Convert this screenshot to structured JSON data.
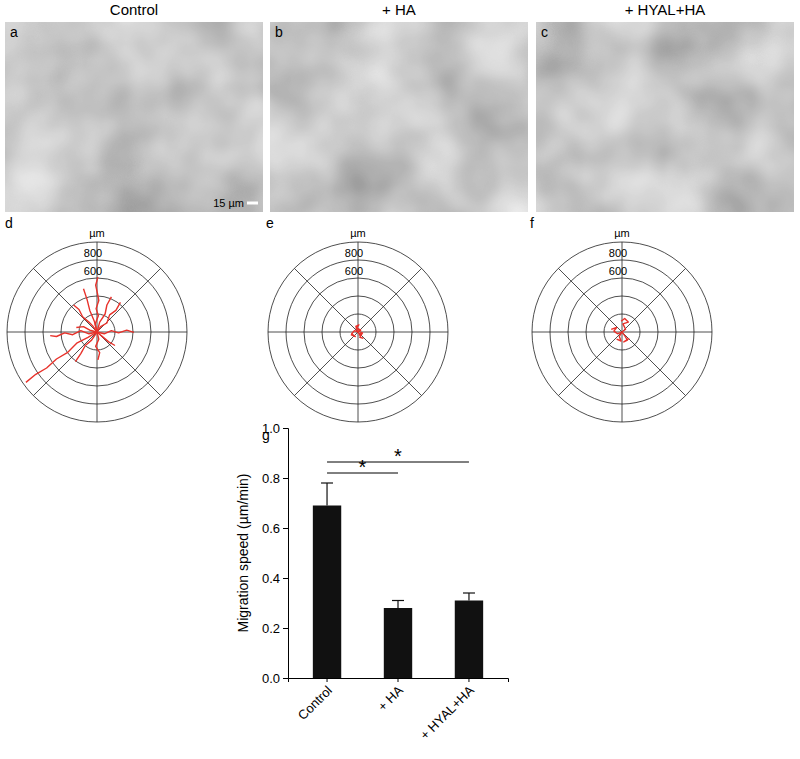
{
  "panels": {
    "titles": [
      "Control",
      "+ HA",
      "+ HYAL+HA"
    ],
    "letters": [
      "a",
      "b",
      "c"
    ],
    "scale_bar": "15 µm"
  },
  "chart_data": [
    {
      "type": "polar_track",
      "letter": "d",
      "unit": "µm",
      "rlim": [
        0,
        1000
      ],
      "rticks": [
        600,
        800
      ],
      "rgrid": [
        200,
        400,
        1000
      ],
      "color": "#e8322b",
      "tracks": [
        {
          "x": [
            0,
            -20,
            15,
            -10,
            20,
            5,
            -15,
            10
          ],
          "y": [
            0,
            90,
            180,
            260,
            350,
            430,
            520,
            610
          ]
        },
        {
          "x": [
            0,
            40,
            110,
            140,
            210,
            260
          ],
          "y": [
            0,
            60,
            100,
            190,
            240,
            330
          ]
        },
        {
          "x": [
            0,
            -50,
            -90,
            -160,
            -200,
            -260
          ],
          "y": [
            0,
            70,
            110,
            170,
            250,
            300
          ]
        },
        {
          "x": [
            0,
            80,
            160,
            240,
            330,
            410
          ],
          "y": [
            0,
            -20,
            15,
            -10,
            20,
            -5
          ]
        },
        {
          "x": [
            0,
            -100,
            -220,
            -330,
            -450,
            -560,
            -680,
            -790
          ],
          "y": [
            0,
            -60,
            -120,
            -230,
            -300,
            -400,
            -470,
            -560
          ]
        },
        {
          "x": [
            0,
            -90,
            -180,
            -270,
            -360,
            -450,
            -520
          ],
          "y": [
            0,
            -20,
            15,
            -30,
            -10,
            -50,
            -40
          ]
        },
        {
          "x": [
            0,
            20,
            -15,
            30,
            10
          ],
          "y": [
            0,
            -80,
            -160,
            -230,
            -310
          ]
        },
        {
          "x": [
            0,
            -60,
            -130,
            -180,
            -240
          ],
          "y": [
            0,
            -90,
            -150,
            -240,
            -330
          ]
        },
        {
          "x": [
            0,
            70,
            130,
            200
          ],
          "y": [
            0,
            -60,
            -110,
            -150
          ]
        },
        {
          "x": [
            0,
            30,
            90,
            110,
            160
          ],
          "y": [
            0,
            110,
            200,
            300,
            390
          ]
        },
        {
          "x": [
            0,
            -80,
            -150,
            -230
          ],
          "y": [
            0,
            20,
            60,
            50
          ]
        },
        {
          "x": [
            0,
            -30,
            -80,
            -110,
            -150
          ],
          "y": [
            0,
            120,
            240,
            360,
            480
          ]
        }
      ]
    },
    {
      "type": "polar_track",
      "letter": "e",
      "unit": "µm",
      "rlim": [
        0,
        1000
      ],
      "rticks": [
        600,
        800
      ],
      "rgrid": [
        200,
        400,
        1000
      ],
      "color": "#e8322b",
      "tracks": [
        {
          "x": [
            0,
            30,
            -20,
            40,
            10
          ],
          "y": [
            0,
            20,
            50,
            -10,
            -40
          ]
        },
        {
          "x": [
            0,
            -40,
            -70,
            -30,
            -80
          ],
          "y": [
            0,
            15,
            -20,
            -50,
            -30
          ]
        },
        {
          "x": [
            0,
            20,
            50,
            20,
            60
          ],
          "y": [
            0,
            -30,
            -10,
            -60,
            -70
          ]
        },
        {
          "x": [
            0,
            -20,
            10,
            -30
          ],
          "y": [
            0,
            40,
            80,
            60
          ]
        }
      ]
    },
    {
      "type": "polar_track",
      "letter": "f",
      "unit": "µm",
      "rlim": [
        0,
        1000
      ],
      "rticks": [
        600,
        800
      ],
      "rgrid": [
        200,
        400,
        1000
      ],
      "color": "#e8322b",
      "tracks": [
        {
          "x": [
            0,
            40,
            10,
            70,
            30,
            -10
          ],
          "y": [
            0,
            30,
            90,
            110,
            150,
            120
          ]
        },
        {
          "x": [
            0,
            -50,
            -90,
            -60,
            -120
          ],
          "y": [
            0,
            -20,
            10,
            50,
            30
          ]
        },
        {
          "x": [
            0,
            30,
            60,
            20,
            80
          ],
          "y": [
            0,
            -40,
            -90,
            -110,
            -70
          ]
        },
        {
          "x": [
            0,
            -30,
            -10,
            -60
          ],
          "y": [
            0,
            -50,
            -100,
            -80
          ]
        }
      ]
    },
    {
      "type": "bar",
      "letter": "g",
      "categories": [
        "Control",
        "+ HA",
        "+ HYAL+HA"
      ],
      "values": [
        0.69,
        0.28,
        0.31
      ],
      "errors": [
        0.09,
        0.03,
        0.03
      ],
      "color": "#111111",
      "ylabel": "Migration speed (µm/min)",
      "ylim": [
        0,
        1
      ],
      "yticks": [
        {
          "value": 0,
          "label": "0.0"
        },
        {
          "value": 0.2,
          "label": "0.2"
        },
        {
          "value": 0.4,
          "label": "0.4"
        },
        {
          "value": 0.6,
          "label": "0.6"
        },
        {
          "value": 0.8,
          "label": "0.8"
        },
        {
          "value": 1,
          "label": "1.0"
        }
      ],
      "significance": [
        {
          "from": 0,
          "to": 1,
          "label": "*"
        },
        {
          "from": 0,
          "to": 2,
          "label": "*"
        }
      ]
    }
  ]
}
